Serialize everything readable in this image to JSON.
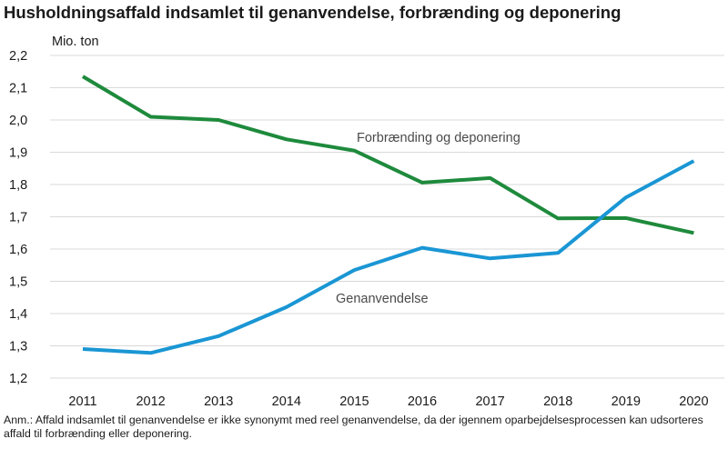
{
  "title": "Husholdningsaffald indsamlet til genanvendelse, forbrænding og deponering",
  "note": "Anm.: Affald indsamlet til genanvendelse er ikke synonymt med reel genanvendelse, da der igennem oparbejdelsesprocessen kan udsorteres affald til forbrænding eller deponering.",
  "chart_data": {
    "type": "line",
    "title": "Husholdningsaffald indsamlet til genanvendelse, forbrænding og deponering",
    "ylabel": "Mio. ton",
    "xlabel": "",
    "categories": [
      "2011",
      "2012",
      "2013",
      "2014",
      "2015",
      "2016",
      "2017",
      "2018",
      "2019",
      "2020"
    ],
    "y_ticks": [
      "1,2",
      "1,3",
      "1,4",
      "1,5",
      "1,6",
      "1,7",
      "1,8",
      "1,9",
      "2,0",
      "2,1",
      "2,2"
    ],
    "ylim": [
      1.2,
      2.2
    ],
    "grid": "horizontal",
    "legend": "inline labels",
    "series": [
      {
        "name": "Forbrænding og deponering",
        "color": "#1e8a3c",
        "values": [
          2.135,
          2.01,
          2.0,
          1.94,
          1.905,
          1.806,
          1.82,
          1.695,
          1.696,
          1.65
        ]
      },
      {
        "name": "Genanvendelse",
        "color": "#1a96d4",
        "values": [
          1.29,
          1.278,
          1.33,
          1.42,
          1.535,
          1.604,
          1.571,
          1.588,
          1.76,
          1.873
        ]
      }
    ]
  }
}
